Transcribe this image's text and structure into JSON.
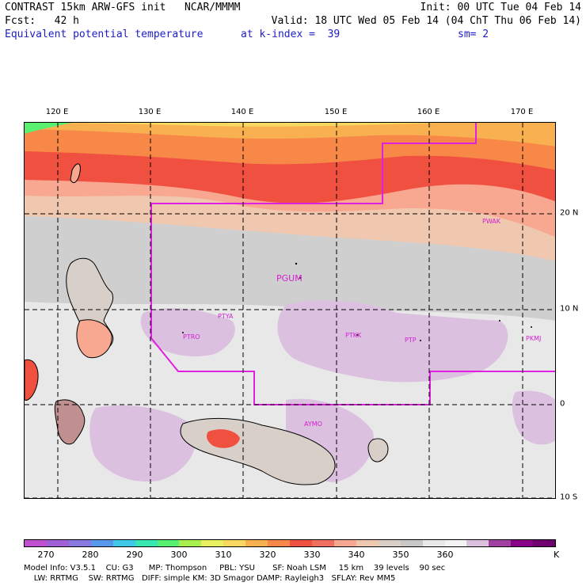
{
  "header": {
    "line1_left": "CONTRAST 15km ARW-GFS init   NCAR/MMMM",
    "line1_right": "Init: 00 UTC Tue 04 Feb 14",
    "line2_left": "Fcst:   42 h",
    "line2_right": "Valid: 18 UTC Wed 05 Feb 14 (04 ChT Thu 06 Feb 14)",
    "line3_left": "Equivalent potential temperature",
    "line3_mid": "at k-index =  39",
    "line3_right": "sm= 2"
  },
  "map": {
    "lon_labels": [
      "120 E",
      "130 E",
      "140 E",
      "150 E",
      "160 E",
      "170 E"
    ],
    "lat_labels": [
      "20 N",
      "10 N",
      "0",
      "10 S"
    ],
    "stations": [
      {
        "id": "PGUM",
        "label": "PGUM"
      },
      {
        "id": "PWAK",
        "label": "PWAK"
      },
      {
        "id": "PTYA",
        "label": "PTYA"
      },
      {
        "id": "PTRO",
        "label": "PTRO"
      },
      {
        "id": "PTKK",
        "label": "PTKK"
      },
      {
        "id": "PTPN",
        "label": "PTP"
      },
      {
        "id": "PKMJ",
        "label": "PKMJ"
      },
      {
        "id": "AYMO",
        "label": "AYMO"
      }
    ],
    "domain_boundary_color": "#e020e0",
    "grid_line_style": "dashed"
  },
  "colorbar": {
    "labels": [
      "270",
      "280",
      "290",
      "300",
      "310",
      "320",
      "330",
      "340",
      "350",
      "360"
    ],
    "unit": "K",
    "colors": [
      "#c050d0",
      "#a060d8",
      "#8878e0",
      "#5898ea",
      "#40c8e8",
      "#38e8b0",
      "#58f070",
      "#a8f050",
      "#e8f060",
      "#f8d860",
      "#f8b050",
      "#f88848",
      "#f05040",
      "#f07060",
      "#f8a890",
      "#f0c8b0",
      "#d8d0c8",
      "#c8c8c8",
      "#e8e8e8",
      "#f4f4f4",
      "#dcc0e0",
      "#a040a0",
      "#880088",
      "#700070"
    ]
  },
  "footer": {
    "line1": "Model Info: V3.5.1    CU: G3      MP: Thompson     PBL: YSU       SF: Noah LSM     15 km    39 levels    90 sec",
    "line2": "    LW: RRTMG    SW: RRTMG   DIFF: simple KM: 3D Smagor DAMP: Rayleigh3   SFLAY: Rev MM5"
  }
}
